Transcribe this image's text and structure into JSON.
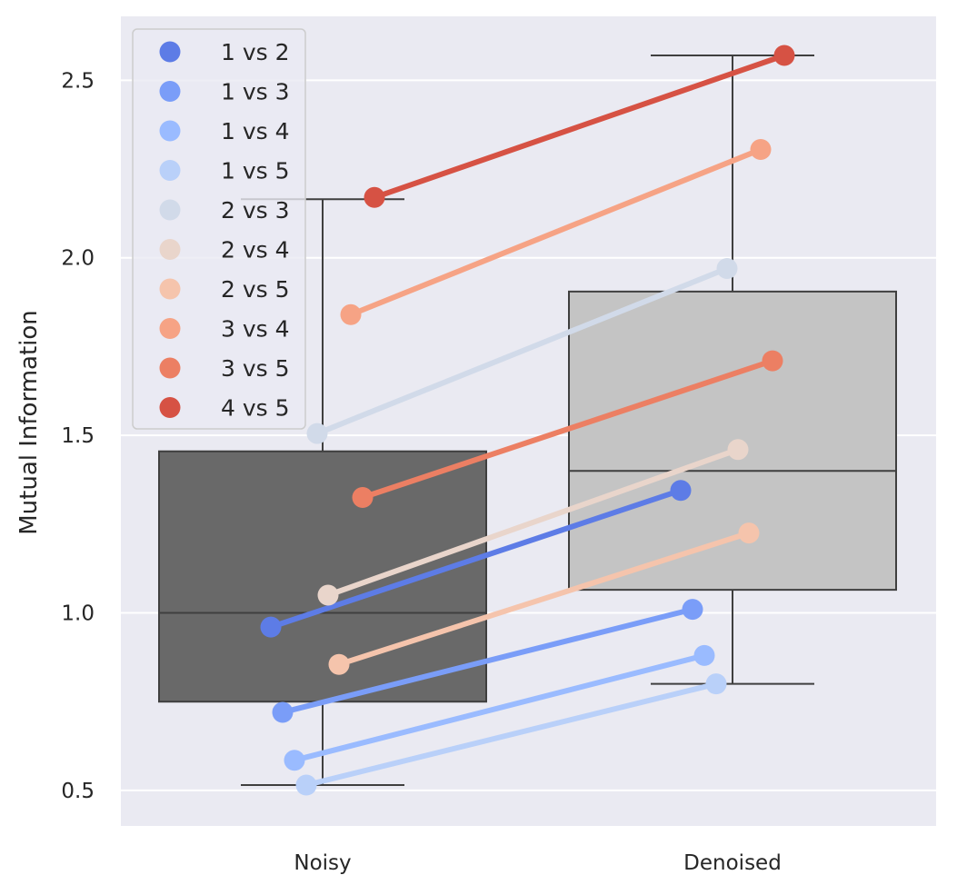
{
  "chart_data": {
    "type": "box",
    "title": "",
    "xlabel": "",
    "ylabel": "Mutual Information",
    "categories": [
      "Noisy",
      "Denoised"
    ],
    "ylim": [
      0.4,
      2.68
    ],
    "yticks": [
      0.5,
      1.0,
      1.5,
      2.0,
      2.5
    ],
    "ytick_labels": [
      "0.5",
      "1.0",
      "1.5",
      "2.0",
      "2.5"
    ],
    "grid": true,
    "legend_position": "top-left",
    "boxes": [
      {
        "category": "Noisy",
        "color": "#696969",
        "whisker_low": 0.515,
        "q1": 0.75,
        "median": 1.0,
        "q3": 1.455,
        "whisker_high": 2.165
      },
      {
        "category": "Denoised",
        "color": "#c4c4c4",
        "whisker_low": 0.8,
        "q1": 1.065,
        "median": 1.4,
        "q3": 1.905,
        "whisker_high": 2.57
      }
    ],
    "series": [
      {
        "name": "1 vs 2",
        "color": "#5d7ce6",
        "values": [
          0.96,
          1.345
        ]
      },
      {
        "name": "1 vs 3",
        "color": "#7a9df8",
        "values": [
          0.72,
          1.01
        ]
      },
      {
        "name": "1 vs 4",
        "color": "#9abbff",
        "values": [
          0.585,
          0.88
        ]
      },
      {
        "name": "1 vs 5",
        "color": "#b9d0f9",
        "values": [
          0.515,
          0.8
        ]
      },
      {
        "name": "2 vs 3",
        "color": "#d1dae9",
        "values": [
          1.505,
          1.97
        ]
      },
      {
        "name": "2 vs 4",
        "color": "#e9d5cb",
        "values": [
          1.05,
          1.46
        ]
      },
      {
        "name": "2 vs 5",
        "color": "#f5c4ac",
        "values": [
          0.855,
          1.225
        ]
      },
      {
        "name": "3 vs 4",
        "color": "#f6a385",
        "values": [
          1.84,
          2.305
        ]
      },
      {
        "name": "3 vs 5",
        "color": "#ec7f63",
        "values": [
          1.325,
          1.71
        ]
      },
      {
        "name": "4 vs 5",
        "color": "#d65244",
        "values": [
          2.17,
          2.57
        ]
      }
    ]
  }
}
